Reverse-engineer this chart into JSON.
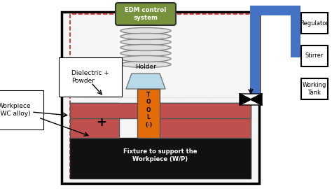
{
  "bg_color": "#ffffff",
  "tank_border": "#000000",
  "dashed_border_color": "#cc2222",
  "fixture_color": "#111111",
  "workpiece_color": "#c0504d",
  "tool_color": "#e36c09",
  "holder_color": "#b8d9e8",
  "edm_box_color": "#76923c",
  "blue_pipe_color": "#4472c4",
  "right_box_color": "#ffffff",
  "right_box_border": "#000000",
  "coil_color": "#888888",
  "labels": {
    "edm": "EDM control\nsystem",
    "holder": "Holder",
    "tool_lines": [
      "T",
      "O",
      "O",
      "L",
      "(-)"
    ],
    "dielectric": "Dielectric +\nPowder",
    "workpiece_label": "Workpiece\n(WC alloy)",
    "fixture": "Fixture to support the\nWorkpiece (W/P)",
    "plus": "+",
    "regulator": "Regulator",
    "stirrer": "Stirrer",
    "working_tank": "Working\nTank"
  }
}
